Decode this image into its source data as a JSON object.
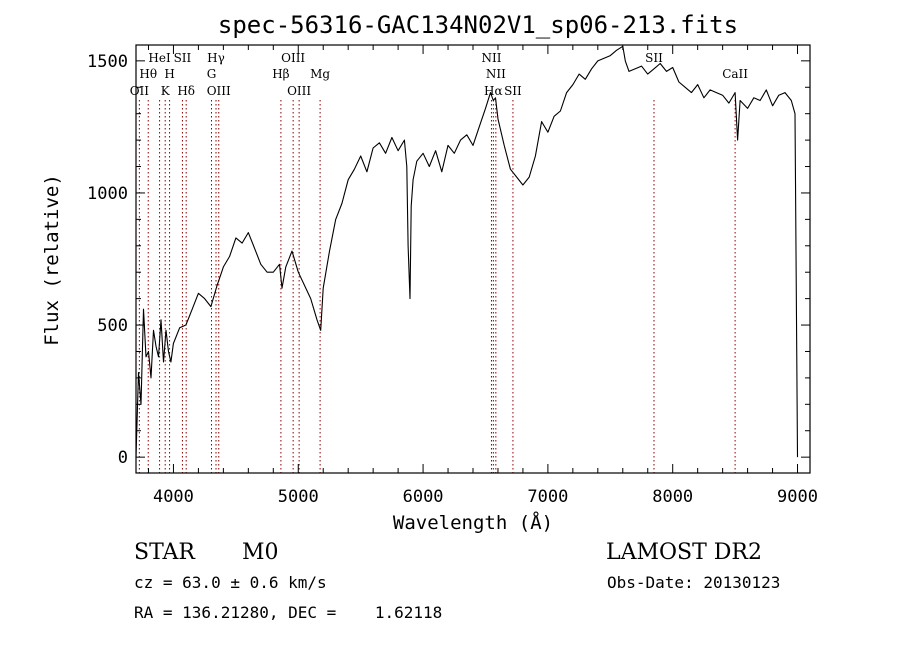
{
  "chart_data": {
    "type": "line",
    "title": "spec-56316-GAC134N02V1_sp06-213.fits",
    "xlabel": "Wavelength (Å)",
    "ylabel": "Flux (relative)",
    "xlim": [
      3700,
      9100
    ],
    "ylim": [
      -60,
      1560
    ],
    "xticks": [
      4000,
      5000,
      6000,
      7000,
      8000,
      9000
    ],
    "yticks": [
      0,
      500,
      1000,
      1500
    ],
    "line_color": "#000000",
    "marker_color": "#8b0000",
    "series": [
      {
        "x": [
          3700,
          3720,
          3740,
          3760,
          3780,
          3800,
          3820,
          3840,
          3860,
          3880,
          3900,
          3920,
          3940,
          3960,
          3980,
          4000,
          4050,
          4100,
          4150,
          4200,
          4250,
          4300,
          4350,
          4400,
          4450,
          4500,
          4550,
          4600,
          4650,
          4700,
          4750,
          4800,
          4850,
          4870,
          4900,
          4950,
          5000,
          5050,
          5100,
          5150,
          5180,
          5200,
          5250,
          5300,
          5350,
          5400,
          5450,
          5500,
          5550,
          5600,
          5650,
          5700,
          5750,
          5800,
          5850,
          5870,
          5880,
          5895,
          5905,
          5920,
          5950,
          6000,
          6050,
          6100,
          6150,
          6200,
          6250,
          6300,
          6350,
          6400,
          6450,
          6500,
          6540,
          6563,
          6580,
          6600,
          6650,
          6700,
          6750,
          6800,
          6850,
          6900,
          6950,
          7000,
          7050,
          7100,
          7150,
          7200,
          7250,
          7300,
          7350,
          7400,
          7450,
          7500,
          7550,
          7600,
          7620,
          7650,
          7700,
          7750,
          7800,
          7850,
          7900,
          7950,
          8000,
          8050,
          8100,
          8150,
          8200,
          8250,
          8300,
          8350,
          8400,
          8450,
          8500,
          8520,
          8540,
          8600,
          8650,
          8700,
          8750,
          8800,
          8850,
          8900,
          8950,
          8980,
          9000
        ],
        "y": [
          0,
          320,
          200,
          560,
          380,
          400,
          300,
          480,
          420,
          380,
          520,
          360,
          480,
          400,
          360,
          430,
          490,
          500,
          560,
          620,
          600,
          570,
          650,
          720,
          760,
          830,
          810,
          850,
          790,
          730,
          700,
          700,
          730,
          640,
          720,
          780,
          700,
          650,
          600,
          520,
          480,
          640,
          780,
          900,
          960,
          1050,
          1090,
          1140,
          1080,
          1170,
          1190,
          1150,
          1210,
          1160,
          1200,
          1100,
          800,
          600,
          950,
          1050,
          1120,
          1150,
          1100,
          1160,
          1080,
          1180,
          1150,
          1200,
          1220,
          1180,
          1250,
          1320,
          1380,
          1350,
          1360,
          1280,
          1180,
          1090,
          1060,
          1030,
          1060,
          1140,
          1270,
          1230,
          1290,
          1310,
          1380,
          1410,
          1450,
          1430,
          1470,
          1500,
          1510,
          1520,
          1540,
          1555,
          1500,
          1460,
          1470,
          1480,
          1450,
          1470,
          1490,
          1460,
          1475,
          1420,
          1400,
          1380,
          1410,
          1360,
          1390,
          1380,
          1370,
          1340,
          1380,
          1200,
          1350,
          1320,
          1360,
          1350,
          1390,
          1330,
          1370,
          1380,
          1350,
          1300,
          0
        ]
      }
    ],
    "line_markers": [
      {
        "label": "OII",
        "wavelength": 3727,
        "row": 3
      },
      {
        "label": "Hθ",
        "wavelength": 3798,
        "row": 2
      },
      {
        "label": "HeI",
        "wavelength": 3889,
        "row": 1
      },
      {
        "label": "K",
        "wavelength": 3934,
        "row": 3
      },
      {
        "label": "H",
        "wavelength": 3969,
        "row": 2
      },
      {
        "label": "SII",
        "wavelength": 4072,
        "row": 1
      },
      {
        "label": "Hδ",
        "wavelength": 4102,
        "row": 3
      },
      {
        "label": "Hγ",
        "wavelength": 4341,
        "row": 1
      },
      {
        "label": "G",
        "wavelength": 4305,
        "row": 2
      },
      {
        "label": "OIII",
        "wavelength": 4363,
        "row": 3
      },
      {
        "label": "Hβ",
        "wavelength": 4861,
        "row": 2
      },
      {
        "label": "OIII",
        "wavelength": 4959,
        "row": 1
      },
      {
        "label": "OIII",
        "wavelength": 5007,
        "row": 3
      },
      {
        "label": "Mg",
        "wavelength": 5175,
        "row": 2
      },
      {
        "label": "NII",
        "wavelength": 6548,
        "row": 1
      },
      {
        "label": "NII",
        "wavelength": 6583,
        "row": 2
      },
      {
        "label": "Hα",
        "wavelength": 6563,
        "row": 3
      },
      {
        "label": "SII",
        "wavelength": 6720,
        "row": 3
      },
      {
        "label": "SII",
        "wavelength": 7850,
        "row": 1
      },
      {
        "label": "CaII",
        "wavelength": 8500,
        "row": 2
      }
    ]
  },
  "footer": {
    "class_label": "STAR",
    "subclass": "M0",
    "survey": "LAMOST DR2",
    "redshift": "cz = 63.0 ± 0.6 km/s",
    "obs_date": "Obs-Date: 20130123",
    "coords": "RA = 136.21280, DEC =    1.62118"
  }
}
